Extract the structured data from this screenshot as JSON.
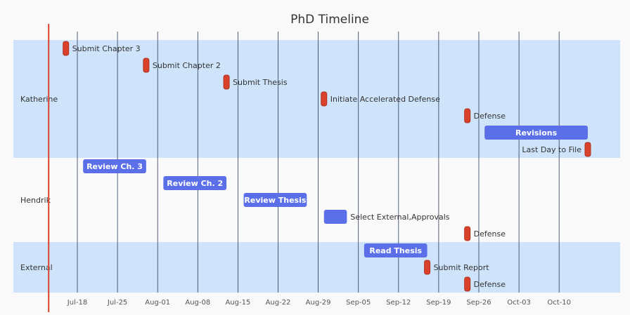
{
  "chart_data": {
    "type": "gantt",
    "title": "PhD Timeline",
    "x_axis": {
      "type": "date",
      "ticks": [
        "2021-07-18",
        "2021-07-25",
        "2021-08-01",
        "2021-08-08",
        "2021-08-15",
        "2021-08-22",
        "2021-08-29",
        "2021-09-05",
        "2021-09-12",
        "2021-09-19",
        "2021-09-26",
        "2021-10-03",
        "2021-10-10"
      ],
      "tick_labels": [
        "Jul-18",
        "Jul-25",
        "Aug-01",
        "Aug-08",
        "Aug-15",
        "Aug-22",
        "Aug-29",
        "Sep-05",
        "Sep-12",
        "Sep-19",
        "Sep-26",
        "Oct-03",
        "Oct-10"
      ],
      "range": [
        "2021-07-13",
        "2021-10-24"
      ],
      "gridlines": true
    },
    "today_marker": "2021-07-13",
    "sections": [
      {
        "name": "Katherine",
        "tasks": [
          {
            "label": "Submit Chapter 3",
            "type": "milestone",
            "start": "2021-07-16"
          },
          {
            "label": "Submit Chapter 2",
            "type": "milestone",
            "start": "2021-07-30"
          },
          {
            "label": "Submit Thesis",
            "type": "milestone",
            "start": "2021-08-13"
          },
          {
            "label": "Initiate Accelerated Defense",
            "type": "milestone",
            "start": "2021-08-30"
          },
          {
            "label": "Defense",
            "type": "milestone",
            "start": "2021-09-24"
          },
          {
            "label": "Revisions",
            "type": "task",
            "start": "2021-09-27",
            "end": "2021-10-15"
          },
          {
            "label": "Last Day to File",
            "type": "milestone",
            "start": "2021-10-15",
            "label_position": "left"
          }
        ]
      },
      {
        "name": "Hendrik",
        "tasks": [
          {
            "label": "Review Ch. 3",
            "type": "task",
            "start": "2021-07-19",
            "end": "2021-07-30"
          },
          {
            "label": "Review Ch. 2",
            "type": "task",
            "start": "2021-08-02",
            "end": "2021-08-13"
          },
          {
            "label": "Review Thesis",
            "type": "task",
            "start": "2021-08-16",
            "end": "2021-08-27"
          },
          {
            "label": "Select External,Approvals",
            "type": "task",
            "start": "2021-08-30",
            "end": "2021-09-03",
            "label_position": "right"
          },
          {
            "label": "Defense",
            "type": "milestone",
            "start": "2021-09-24"
          }
        ]
      },
      {
        "name": "External",
        "tasks": [
          {
            "label": "Read Thesis",
            "type": "task",
            "start": "2021-09-06",
            "end": "2021-09-17"
          },
          {
            "label": "Submit Report",
            "type": "milestone",
            "start": "2021-09-17"
          },
          {
            "label": "Defense",
            "type": "milestone",
            "start": "2021-09-24"
          }
        ]
      }
    ],
    "colors": {
      "task_bar": "#5b70e8",
      "milestone": "#d9412b",
      "milestone_border": "#b03220",
      "section_band_odd": "#cfe4fb",
      "section_band_even": "#fafafa",
      "gridline": "#2a3a55",
      "today_line": "#d9412b",
      "background": "#f9f9f9"
    }
  }
}
